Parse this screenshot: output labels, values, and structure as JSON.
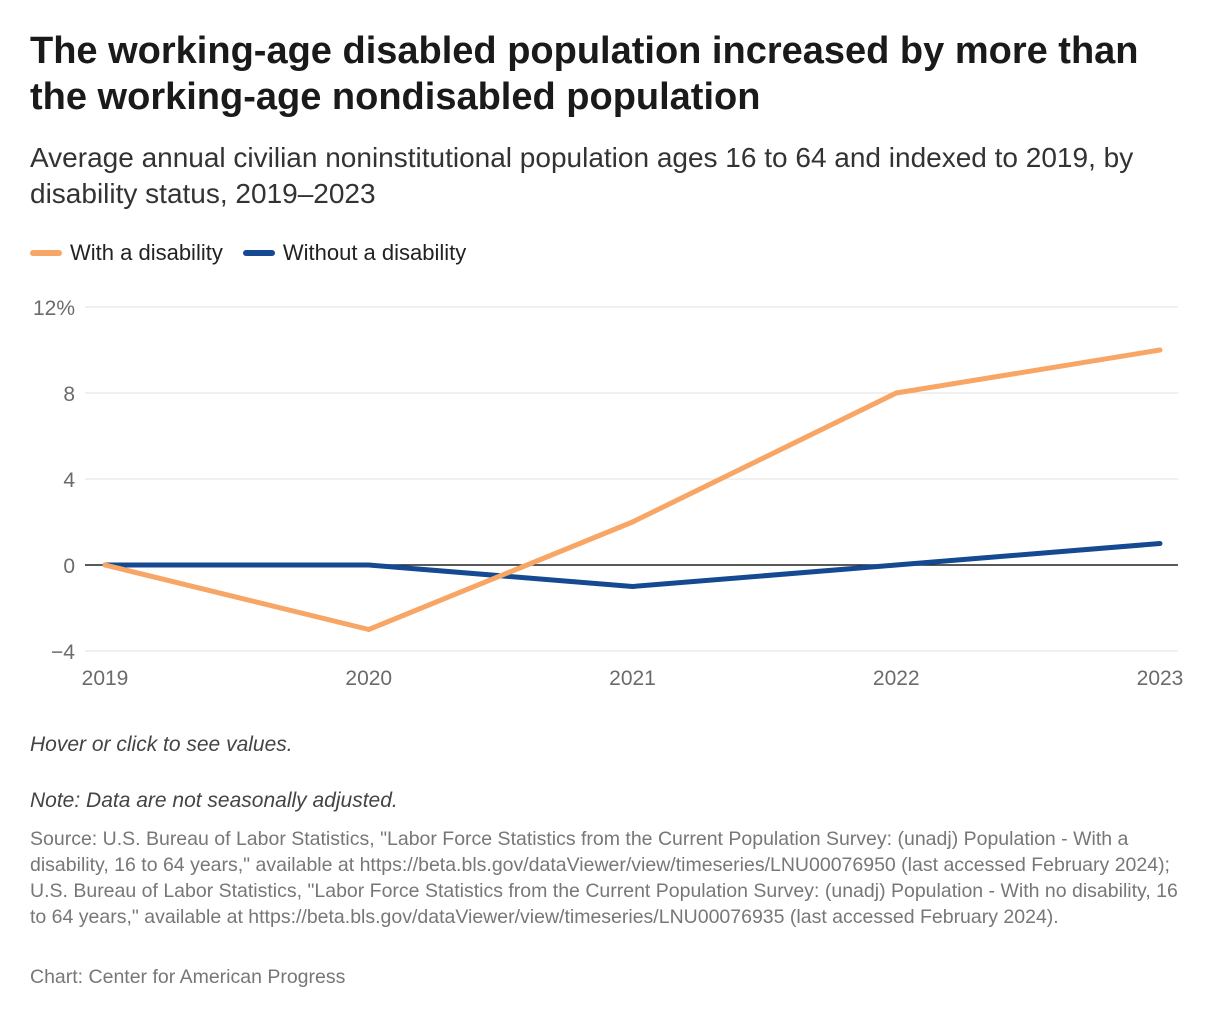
{
  "header": {
    "title": "The working-age disabled population increased by more than the working-age nondisabled population",
    "subtitle": "Average annual civilian noninstitutional population ages 16 to 64 and indexed to 2019, by disability status, 2019–2023"
  },
  "legend": [
    {
      "label": "With a disability",
      "color": "#f7a666"
    },
    {
      "label": "Without a disability",
      "color": "#154a93"
    }
  ],
  "chart_data": {
    "type": "line",
    "title": "The working-age disabled population increased by more than the working-age nondisabled population",
    "subtitle": "Average annual civilian noninstitutional population ages 16 to 64 and indexed to 2019, by disability status, 2019–2023",
    "x": [
      "2019",
      "2020",
      "2021",
      "2022",
      "2023"
    ],
    "series": [
      {
        "name": "With a disability",
        "color": "#f7a666",
        "values": [
          0,
          -3,
          2,
          8,
          10
        ]
      },
      {
        "name": "Without a disability",
        "color": "#154a93",
        "values": [
          0,
          0,
          -1,
          0,
          1
        ]
      }
    ],
    "ylim": [
      -4,
      12
    ],
    "yticks": [
      -4,
      0,
      4,
      8,
      12
    ],
    "ytick_labels": [
      "−4",
      "0",
      "4",
      "8",
      "12%"
    ],
    "xlabel": "",
    "ylabel": "",
    "grid": true,
    "legend_position": "top-left"
  },
  "footer": {
    "hover_note": "Hover or click to see values.",
    "note": "Note: Data are not seasonally adjusted.",
    "source": "Source: U.S. Bureau of Labor Statistics, \"Labor Force Statistics from the Current Population Survey: (unadj) Population - With a disability, 16 to 64 years,\" available at https://beta.bls.gov/dataViewer/view/timeseries/LNU00076950 (last accessed February 2024); U.S. Bureau of Labor Statistics, \"Labor Force Statistics from the Current Population Survey: (unadj) Population - With no disability, 16 to 64 years,\" available at https://beta.bls.gov/dataViewer/view/timeseries/LNU00076935 (last accessed February 2024).",
    "credit": "Chart: Center for American Progress"
  }
}
